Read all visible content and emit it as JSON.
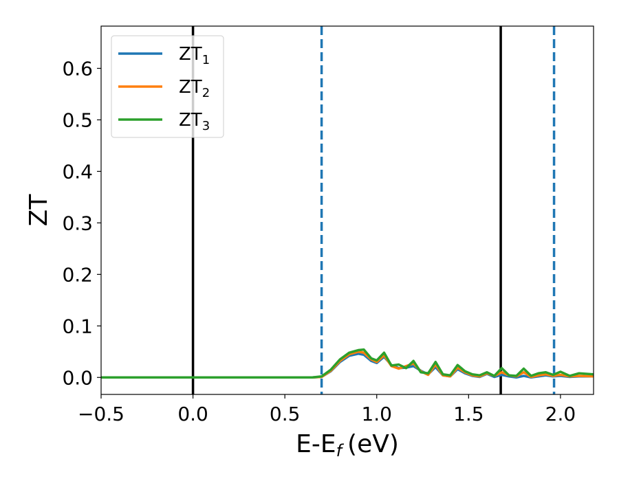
{
  "chart_data": {
    "type": "line",
    "xlabel": "E-E",
    "xlabel_sub": "f",
    "xlabel_unit": "(eV)",
    "ylabel": "ZT",
    "xlim": [
      -0.5,
      2.18
    ],
    "ylim": [
      -0.033,
      0.682
    ],
    "xticks": [
      -0.5,
      0.0,
      0.5,
      1.0,
      1.5,
      2.0
    ],
    "xtick_labels": [
      "−0.5",
      "0.0",
      "0.5",
      "1.0",
      "1.5",
      "2.0"
    ],
    "yticks": [
      0.0,
      0.1,
      0.2,
      0.3,
      0.4,
      0.5,
      0.6
    ],
    "ytick_labels": [
      "0.0",
      "0.1",
      "0.2",
      "0.3",
      "0.4",
      "0.5",
      "0.6"
    ],
    "grid": false,
    "legend_position": "top-left",
    "vlines": [
      {
        "x": 0.0,
        "style": "solid",
        "color": "#000000"
      },
      {
        "x": 1.675,
        "style": "solid",
        "color": "#000000"
      },
      {
        "x": 0.7,
        "style": "dashed",
        "color": "#1f77b4"
      },
      {
        "x": 1.965,
        "style": "dashed",
        "color": "#1f77b4"
      }
    ],
    "series": [
      {
        "name": "ZT",
        "name_sub": "1",
        "color": "#1f77b4",
        "x": [
          -0.5,
          0.6,
          0.65,
          0.7,
          0.75,
          0.8,
          0.85,
          0.9,
          0.93,
          0.97,
          1.0,
          1.04,
          1.08,
          1.12,
          1.16,
          1.2,
          1.24,
          1.28,
          1.32,
          1.36,
          1.4,
          1.44,
          1.48,
          1.52,
          1.56,
          1.6,
          1.64,
          1.68,
          1.72,
          1.76,
          1.8,
          1.84,
          1.88,
          1.92,
          1.96,
          2.0,
          2.05,
          2.1,
          2.18
        ],
        "y": [
          0.0,
          0.0,
          0.0,
          0.001,
          0.012,
          0.03,
          0.042,
          0.046,
          0.044,
          0.032,
          0.028,
          0.04,
          0.024,
          0.018,
          0.019,
          0.022,
          0.013,
          0.006,
          0.02,
          0.004,
          0.002,
          0.016,
          0.008,
          0.003,
          0.001,
          0.007,
          0.001,
          0.005,
          0.002,
          0.0,
          0.003,
          0.0,
          0.002,
          0.004,
          0.002,
          0.003,
          0.001,
          0.002,
          0.002
        ]
      },
      {
        "name": "ZT",
        "name_sub": "2",
        "color": "#ff7f0e",
        "x": [
          -0.5,
          0.6,
          0.65,
          0.7,
          0.75,
          0.8,
          0.85,
          0.9,
          0.93,
          0.97,
          1.0,
          1.04,
          1.08,
          1.12,
          1.16,
          1.2,
          1.24,
          1.28,
          1.32,
          1.36,
          1.4,
          1.44,
          1.48,
          1.52,
          1.56,
          1.6,
          1.64,
          1.68,
          1.72,
          1.76,
          1.8,
          1.84,
          1.88,
          1.92,
          1.96,
          2.0,
          2.05,
          2.1,
          2.18
        ],
        "y": [
          0.0,
          0.0,
          0.0,
          0.001,
          0.013,
          0.032,
          0.045,
          0.05,
          0.048,
          0.035,
          0.03,
          0.043,
          0.022,
          0.017,
          0.022,
          0.027,
          0.012,
          0.005,
          0.025,
          0.004,
          0.002,
          0.019,
          0.01,
          0.004,
          0.002,
          0.008,
          0.003,
          0.01,
          0.004,
          0.002,
          0.01,
          0.001,
          0.004,
          0.006,
          0.003,
          0.005,
          0.002,
          0.003,
          0.002
        ]
      },
      {
        "name": "ZT",
        "name_sub": "3",
        "color": "#2ca02c",
        "x": [
          -0.5,
          0.6,
          0.65,
          0.7,
          0.75,
          0.8,
          0.85,
          0.9,
          0.93,
          0.97,
          1.0,
          1.04,
          1.08,
          1.12,
          1.16,
          1.2,
          1.24,
          1.28,
          1.32,
          1.36,
          1.4,
          1.44,
          1.48,
          1.52,
          1.56,
          1.6,
          1.64,
          1.68,
          1.72,
          1.76,
          1.8,
          1.84,
          1.88,
          1.92,
          1.96,
          2.0,
          2.05,
          2.1,
          2.18
        ],
        "y": [
          0.0,
          0.0,
          0.0,
          0.002,
          0.015,
          0.035,
          0.048,
          0.053,
          0.054,
          0.037,
          0.033,
          0.048,
          0.023,
          0.025,
          0.018,
          0.032,
          0.01,
          0.008,
          0.03,
          0.006,
          0.004,
          0.024,
          0.012,
          0.006,
          0.004,
          0.01,
          0.003,
          0.018,
          0.004,
          0.003,
          0.017,
          0.003,
          0.008,
          0.01,
          0.005,
          0.011,
          0.003,
          0.008,
          0.006
        ]
      }
    ]
  }
}
